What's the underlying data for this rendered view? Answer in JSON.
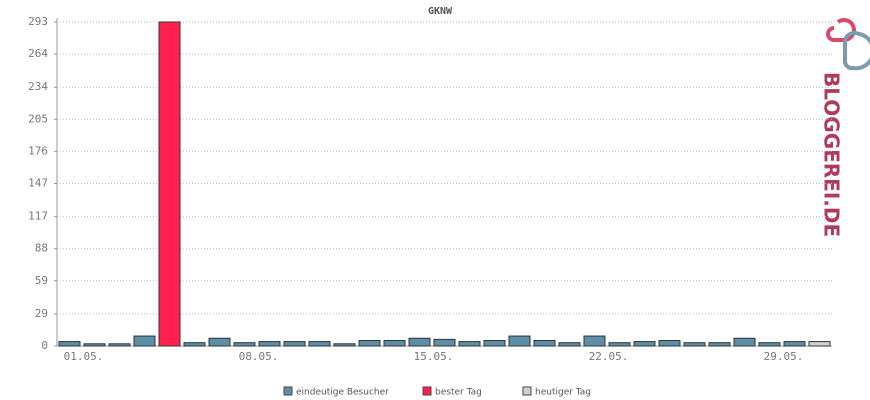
{
  "chart_data": {
    "type": "bar",
    "title": "GKNW",
    "categories": [
      "01.05.",
      null,
      null,
      null,
      null,
      null,
      null,
      "08.05.",
      null,
      null,
      null,
      null,
      null,
      null,
      "15.05.",
      null,
      null,
      null,
      null,
      null,
      null,
      "22.05.",
      null,
      null,
      null,
      null,
      null,
      null,
      "29.05.",
      null,
      null
    ],
    "series": [
      {
        "name": "eindeutige Besucher",
        "color": "#5b8fa8",
        "values": [
          4,
          2,
          2,
          9,
          null,
          3,
          7,
          3,
          4,
          4,
          4,
          2,
          5,
          5,
          7,
          6,
          4,
          5,
          9,
          5,
          3,
          9,
          3,
          4,
          5,
          3,
          3,
          7,
          3,
          4,
          null
        ]
      },
      {
        "name": "bester Tag",
        "color": "#ff2050",
        "values": [
          null,
          null,
          null,
          null,
          293,
          null,
          null,
          null,
          null,
          null,
          null,
          null,
          null,
          null,
          null,
          null,
          null,
          null,
          null,
          null,
          null,
          null,
          null,
          null,
          null,
          null,
          null,
          null,
          null,
          null,
          null
        ]
      },
      {
        "name": "heutiger Tag",
        "color": "#d0d0d0",
        "values": [
          null,
          null,
          null,
          null,
          null,
          null,
          null,
          null,
          null,
          null,
          null,
          null,
          null,
          null,
          null,
          null,
          null,
          null,
          null,
          null,
          null,
          null,
          null,
          null,
          null,
          null,
          null,
          null,
          null,
          null,
          4
        ]
      }
    ],
    "ylim": [
      0,
      293
    ],
    "yticks": [
      0,
      29,
      59,
      88,
      117,
      147,
      176,
      205,
      234,
      264,
      293
    ],
    "grid": true
  },
  "logo_text": "BLOGGEREI.DE"
}
